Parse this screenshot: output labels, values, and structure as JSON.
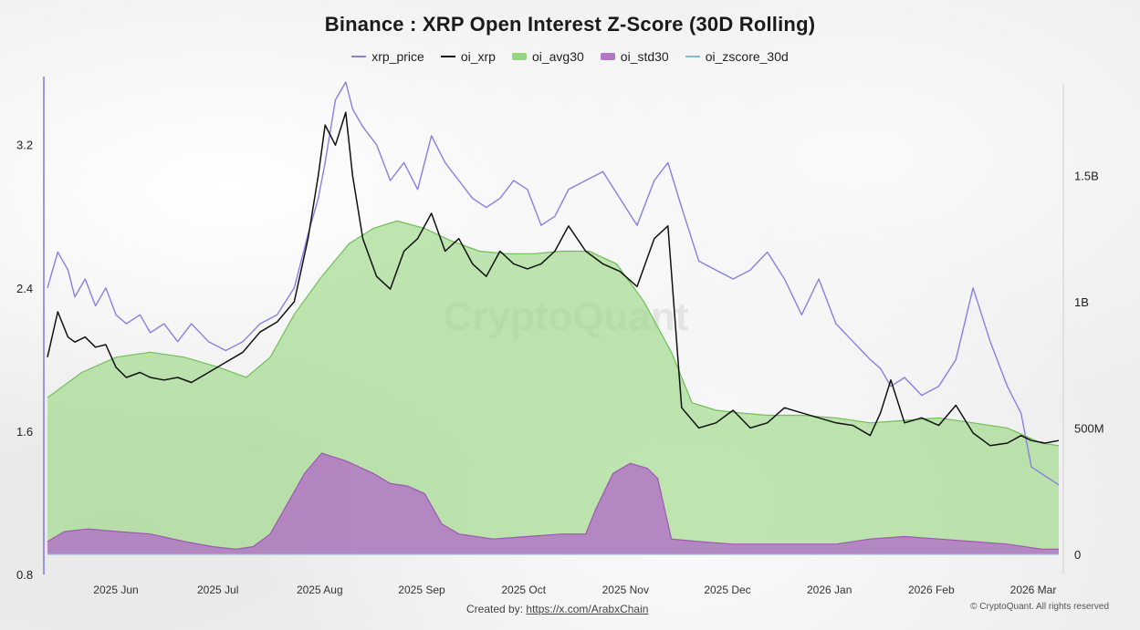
{
  "title": "Binance : XRP Open Interest Z-Score (30D Rolling)",
  "legend": [
    {
      "label": "xrp_price",
      "color": "#8a7fe0",
      "kind": "line"
    },
    {
      "label": "oi_xrp",
      "color": "#111111",
      "kind": "line"
    },
    {
      "label": "oi_avg30",
      "color": "#96d67f",
      "kind": "area"
    },
    {
      "label": "oi_std30",
      "color": "#b277c4",
      "kind": "area"
    },
    {
      "label": "oi_zscore_30d",
      "color": "#86b7d9",
      "kind": "line"
    }
  ],
  "watermark": "CryptoQuant",
  "credit_prefix": "Created by:",
  "credit_link": "https://x.com/ArabxChain",
  "copyright": "© CryptoQuant. All rights reserved",
  "chart_data": {
    "type": "line",
    "title": "Binance : XRP Open Interest Z-Score (30D Rolling)",
    "x_ticks": [
      "2025 Jun",
      "2025 Jul",
      "2025 Aug",
      "2025 Sep",
      "2025 Oct",
      "2025 Nov",
      "2025 Dec",
      "2026 Jan",
      "2026 Feb",
      "2026 Mar"
    ],
    "y_left": {
      "ticks": [
        "3.2",
        "2.4",
        "1.6",
        "0.8"
      ],
      "tick_values": [
        3.2,
        2.4,
        1.6,
        0.8
      ],
      "range": [
        0.8,
        3.55
      ]
    },
    "y_right": {
      "ticks": [
        "1.5B",
        "1B",
        "500M",
        "0"
      ],
      "tick_values": [
        1500000000,
        1000000000,
        500000000,
        0
      ],
      "range": [
        -80000000,
        1870000000
      ]
    },
    "x_range": [
      0,
      295
    ],
    "series": [
      {
        "name": "xrp_price",
        "axis": "left",
        "type": "line",
        "color": "#8a7fe0",
        "x": [
          0,
          3,
          6,
          8,
          11,
          14,
          17,
          20,
          23,
          27,
          30,
          34,
          38,
          42,
          47,
          52,
          57,
          62,
          67,
          72,
          76,
          79,
          81,
          84,
          87,
          89,
          92,
          96,
          100,
          104,
          108,
          112,
          116,
          120,
          124,
          128,
          132,
          136,
          140,
          144,
          148,
          152,
          157,
          162,
          167,
          172,
          177,
          181,
          185,
          190,
          195,
          200,
          205,
          210,
          215,
          220,
          225,
          230,
          235,
          240,
          243,
          246,
          250,
          255,
          260,
          265,
          270,
          275,
          280,
          284,
          287,
          291,
          295
        ],
        "y": [
          2.4,
          2.6,
          2.5,
          2.35,
          2.45,
          2.3,
          2.4,
          2.25,
          2.2,
          2.25,
          2.15,
          2.2,
          2.1,
          2.2,
          2.1,
          2.05,
          2.1,
          2.2,
          2.25,
          2.4,
          2.7,
          2.9,
          3.1,
          3.45,
          3.55,
          3.4,
          3.3,
          3.2,
          3.0,
          3.1,
          2.95,
          3.25,
          3.1,
          3.0,
          2.9,
          2.85,
          2.9,
          3.0,
          2.95,
          2.75,
          2.8,
          2.95,
          3.0,
          3.05,
          2.9,
          2.75,
          3.0,
          3.1,
          2.85,
          2.55,
          2.5,
          2.45,
          2.5,
          2.6,
          2.45,
          2.25,
          2.45,
          2.2,
          2.1,
          2.0,
          1.95,
          1.85,
          1.9,
          1.8,
          1.85,
          2.0,
          2.4,
          2.1,
          1.85,
          1.7,
          1.4,
          1.35,
          1.3
        ]
      },
      {
        "name": "oi_xrp",
        "axis": "right",
        "type": "line",
        "color": "#111111",
        "x": [
          0,
          3,
          6,
          8,
          11,
          14,
          17,
          20,
          23,
          27,
          30,
          34,
          38,
          42,
          47,
          52,
          57,
          62,
          67,
          72,
          76,
          79,
          81,
          84,
          87,
          89,
          92,
          96,
          100,
          104,
          108,
          112,
          116,
          120,
          124,
          128,
          132,
          136,
          140,
          144,
          148,
          152,
          157,
          162,
          167,
          172,
          177,
          181,
          185,
          190,
          195,
          200,
          205,
          210,
          215,
          220,
          225,
          230,
          235,
          240,
          243,
          246,
          250,
          255,
          260,
          265,
          270,
          275,
          280,
          284,
          287,
          291,
          295
        ],
        "y": [
          780000000,
          960000000,
          860000000,
          840000000,
          860000000,
          820000000,
          830000000,
          740000000,
          700000000,
          720000000,
          700000000,
          690000000,
          700000000,
          680000000,
          720000000,
          760000000,
          800000000,
          880000000,
          920000000,
          1000000000,
          1250000000,
          1500000000,
          1700000000,
          1620000000,
          1750000000,
          1500000000,
          1250000000,
          1100000000,
          1050000000,
          1200000000,
          1250000000,
          1350000000,
          1200000000,
          1250000000,
          1150000000,
          1100000000,
          1200000000,
          1150000000,
          1130000000,
          1150000000,
          1200000000,
          1300000000,
          1200000000,
          1150000000,
          1120000000,
          1060000000,
          1250000000,
          1300000000,
          580000000,
          500000000,
          520000000,
          570000000,
          500000000,
          520000000,
          580000000,
          560000000,
          540000000,
          520000000,
          510000000,
          470000000,
          560000000,
          690000000,
          520000000,
          540000000,
          510000000,
          590000000,
          480000000,
          430000000,
          440000000,
          470000000,
          450000000,
          440000000,
          450000000
        ]
      },
      {
        "name": "oi_avg30",
        "axis": "right",
        "type": "area",
        "color": "#96d67f",
        "x": [
          0,
          10,
          20,
          30,
          40,
          50,
          58,
          65,
          72,
          80,
          88,
          95,
          102,
          110,
          118,
          126,
          134,
          142,
          150,
          158,
          166,
          174,
          182,
          188,
          195,
          202,
          210,
          220,
          230,
          240,
          250,
          260,
          270,
          280,
          290,
          295
        ],
        "y": [
          620000000,
          720000000,
          780000000,
          800000000,
          780000000,
          740000000,
          700000000,
          780000000,
          950000000,
          1100000000,
          1230000000,
          1290000000,
          1320000000,
          1290000000,
          1240000000,
          1200000000,
          1190000000,
          1190000000,
          1200000000,
          1200000000,
          1150000000,
          1000000000,
          800000000,
          600000000,
          570000000,
          560000000,
          550000000,
          550000000,
          540000000,
          520000000,
          530000000,
          540000000,
          520000000,
          500000000,
          440000000,
          430000000
        ]
      },
      {
        "name": "oi_std30",
        "axis": "right",
        "type": "area",
        "color": "#b277c4",
        "x": [
          0,
          5,
          12,
          20,
          30,
          40,
          48,
          55,
          60,
          65,
          70,
          75,
          80,
          87,
          95,
          100,
          105,
          110,
          115,
          120,
          130,
          140,
          150,
          157,
          160,
          165,
          170,
          175,
          178,
          182,
          190,
          200,
          210,
          220,
          230,
          240,
          250,
          260,
          270,
          280,
          290,
          295
        ],
        "y": [
          50000000,
          90000000,
          100000000,
          90000000,
          80000000,
          50000000,
          30000000,
          20000000,
          30000000,
          80000000,
          200000000,
          320000000,
          400000000,
          370000000,
          320000000,
          280000000,
          270000000,
          240000000,
          120000000,
          80000000,
          60000000,
          70000000,
          80000000,
          80000000,
          180000000,
          320000000,
          360000000,
          340000000,
          300000000,
          60000000,
          50000000,
          40000000,
          40000000,
          40000000,
          40000000,
          60000000,
          70000000,
          60000000,
          50000000,
          40000000,
          20000000,
          20000000
        ]
      },
      {
        "name": "oi_zscore_30d",
        "axis": "right",
        "type": "line",
        "color": "#86b7d9",
        "x": [
          0,
          295
        ],
        "y": [
          0,
          0
        ]
      }
    ]
  }
}
